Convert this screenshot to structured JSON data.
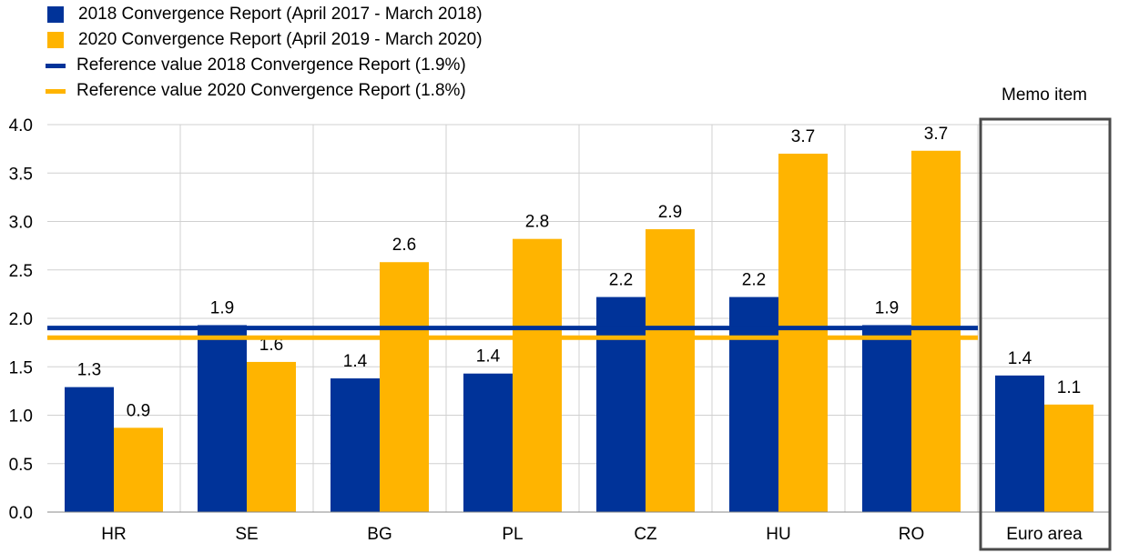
{
  "legend": {
    "items": [
      {
        "label": "2018 Convergence Report (April 2017 - March 2018)",
        "kind": "bar",
        "color": "#003399"
      },
      {
        "label": "2020 Convergence Report (April 2019 - March 2020)",
        "kind": "bar",
        "color": "#FFB400"
      },
      {
        "label": "Reference value 2018 Convergence Report (1.9%)",
        "kind": "line",
        "color": "#003399"
      },
      {
        "label": "Reference value 2020 Convergence Report (1.8%)",
        "kind": "line",
        "color": "#FFB400"
      }
    ]
  },
  "memo": {
    "label": "Memo item"
  },
  "chart_data": {
    "type": "bar",
    "title": "",
    "xlabel": "",
    "ylabel": "",
    "categories": [
      "HR",
      "SE",
      "BG",
      "PL",
      "CZ",
      "HU",
      "RO",
      "Euro area"
    ],
    "series": [
      {
        "name": "2018 Convergence Report (April 2017 - March 2018)",
        "color": "#003399",
        "values": [
          1.29,
          1.93,
          1.38,
          1.43,
          2.22,
          2.22,
          1.93,
          1.41
        ],
        "labels": [
          "1.3",
          "1.9",
          "1.4",
          "1.4",
          "2.2",
          "2.2",
          "1.9",
          "1.4"
        ]
      },
      {
        "name": "2020 Convergence Report (April 2019 - March 2020)",
        "color": "#FFB400",
        "values": [
          0.87,
          1.55,
          2.58,
          2.82,
          2.92,
          3.7,
          3.73,
          1.11
        ],
        "labels": [
          "0.9",
          "1.6",
          "2.6",
          "2.8",
          "2.9",
          "3.7",
          "3.7",
          "1.1"
        ]
      }
    ],
    "reference_lines": [
      {
        "name": "Reference value 2018 Convergence Report (1.9%)",
        "value": 1.9,
        "color": "#003399"
      },
      {
        "name": "Reference value 2020 Convergence Report (1.8%)",
        "value": 1.8,
        "color": "#FFB400"
      }
    ],
    "ylim": [
      0,
      4.0
    ],
    "yticks": [
      "0.0",
      "0.5",
      "1.0",
      "1.5",
      "2.0",
      "2.5",
      "3.0",
      "3.5",
      "4.0"
    ],
    "grid": true,
    "legend_position": "top-left",
    "memo_category": "Euro area"
  }
}
